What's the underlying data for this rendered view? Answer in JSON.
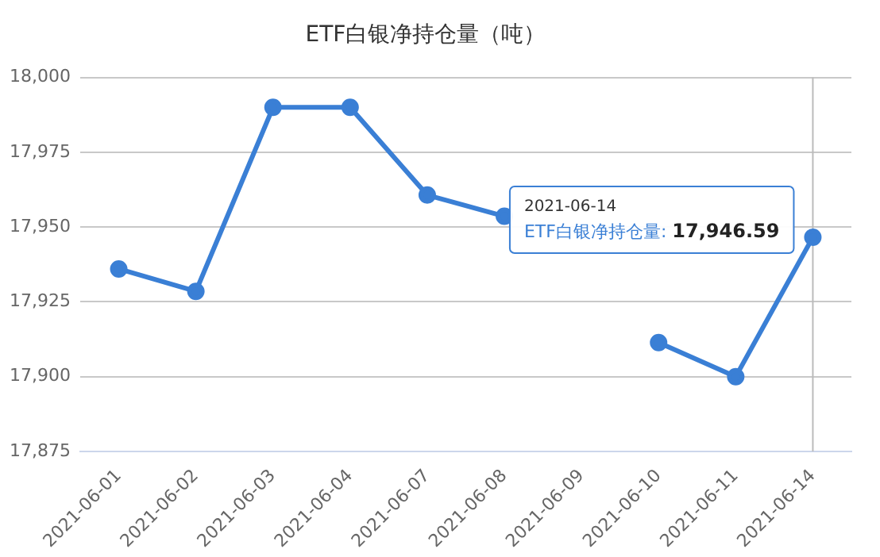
{
  "chart_data": {
    "type": "line",
    "title": "ETF白银净持仓量（吨）",
    "categories": [
      "2021-06-01",
      "2021-06-02",
      "2021-06-03",
      "2021-06-04",
      "2021-06-07",
      "2021-06-08",
      "2021-06-09",
      "2021-06-10",
      "2021-06-11",
      "2021-06-14"
    ],
    "series": [
      {
        "color": "#3a7fd5",
        "values": [
          17936,
          17928.5,
          17990,
          17990,
          17960.7,
          17953.6,
          null,
          17911.4,
          17900,
          17946.59
        ]
      }
    ],
    "ylim": [
      17875,
      18000
    ],
    "yticks": [
      {
        "value": 17875,
        "label": "17,875"
      },
      {
        "value": 17900,
        "label": "17,900"
      },
      {
        "value": 17925,
        "label": "17,925"
      },
      {
        "value": 17950,
        "label": "17,950"
      },
      {
        "value": 17975,
        "label": "17,975"
      },
      {
        "value": 18000,
        "label": "18,000"
      }
    ],
    "grid": "y",
    "marker": "circle",
    "line_style": "solid",
    "legend": false,
    "annotations": [
      "2021-06-14",
      {
        "text": "ETF白银净持仓量: 17,946.59",
        "x": "2021-06-14",
        "y": 17946.59
      }
    ],
    "ref_lines": [
      {
        "axis": "x",
        "value": "2021-06-14",
        "color": "#bbbbbb"
      }
    ]
  }
}
